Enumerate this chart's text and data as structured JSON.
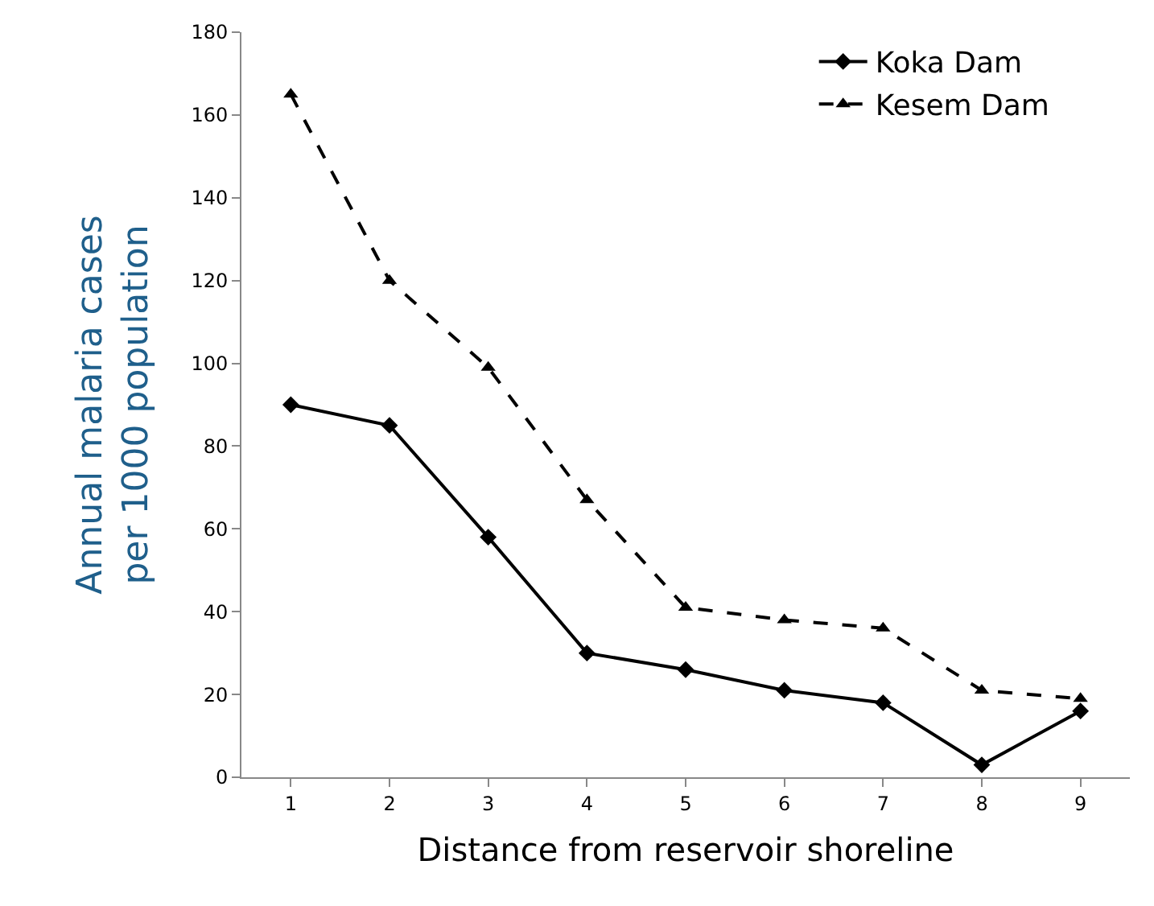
{
  "chart_data": {
    "type": "line",
    "xlabel": "Distance from reservoir shoreline",
    "ylabel": "Annual malaria cases\nper 1000 population",
    "categories": [
      "1",
      "2",
      "3",
      "4",
      "5",
      "6",
      "7",
      "8",
      "9"
    ],
    "series": [
      {
        "name": "Koka Dam",
        "color": "#000000",
        "marker": "diamond",
        "line_style": "solid",
        "values": [
          90,
          85,
          58,
          30,
          26,
          21,
          18,
          3,
          16
        ]
      },
      {
        "name": "Kesem Dam",
        "color": "#000000",
        "marker": "triangle",
        "line_style": "dashed",
        "values": [
          165,
          120,
          99,
          67,
          41,
          38,
          36,
          21,
          19
        ]
      }
    ],
    "ylim": [
      0,
      180
    ],
    "yticks": [
      0,
      20,
      40,
      60,
      80,
      100,
      120,
      140,
      160,
      180
    ],
    "grid": false,
    "legend": "top right"
  }
}
